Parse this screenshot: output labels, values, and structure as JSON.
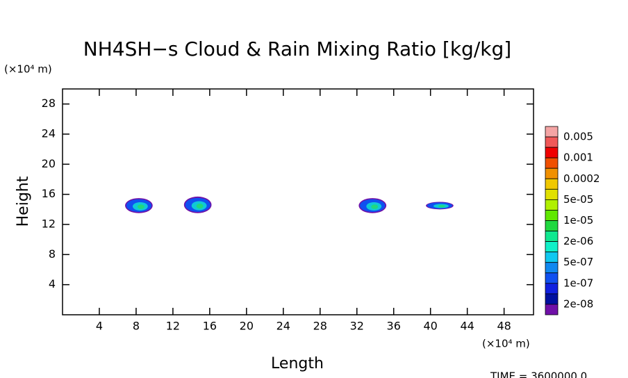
{
  "chart_data": {
    "type": "contour",
    "title": "NH4SH−s Cloud & Rain Mixing Ratio [kg/kg]",
    "x_label": "Length",
    "y_label": "Height",
    "x_unit": "(×10⁴ m)",
    "y_unit": "(×10⁴ m)",
    "time_label": "TIME = 3600000.0",
    "xlim": [
      0,
      51.2
    ],
    "ylim": [
      0,
      30
    ],
    "xticks": [
      4,
      8,
      12,
      16,
      20,
      24,
      28,
      32,
      36,
      40,
      44,
      48
    ],
    "yticks": [
      4,
      8,
      12,
      16,
      20,
      24,
      28
    ],
    "clouds": [
      {
        "x": [
          6.8,
          9.8
        ],
        "y": [
          13.5,
          15.5
        ]
      },
      {
        "x": [
          13.2,
          16.2
        ],
        "y": [
          13.5,
          15.7
        ]
      },
      {
        "x": [
          32.2,
          35.2
        ],
        "y": [
          13.5,
          15.5
        ]
      },
      {
        "x": [
          39.5,
          42.5
        ],
        "y": [
          14.0,
          15.0
        ]
      }
    ],
    "colorbar": {
      "colors": [
        "#f4a4a4",
        "#f05858",
        "#f00000",
        "#f05000",
        "#f09000",
        "#f0c800",
        "#e0e000",
        "#b0f000",
        "#60e800",
        "#20d840",
        "#10e890",
        "#10f0c8",
        "#10c8f0",
        "#1088f0",
        "#1050f0",
        "#1020e0",
        "#0010a0",
        "#7010a8"
      ],
      "labels": [
        0.005,
        0.001,
        0.0002,
        {
          "value": 5e-05,
          "label": "5e-05"
        },
        {
          "value": 1e-05,
          "label": "1e-05"
        },
        {
          "value": 2e-06,
          "label": "2e-06"
        },
        {
          "value": 5e-07,
          "label": "5e-07"
        },
        {
          "value": 1e-07,
          "label": "1e-07"
        },
        {
          "value": 2e-08,
          "label": "2e-08"
        }
      ]
    }
  }
}
